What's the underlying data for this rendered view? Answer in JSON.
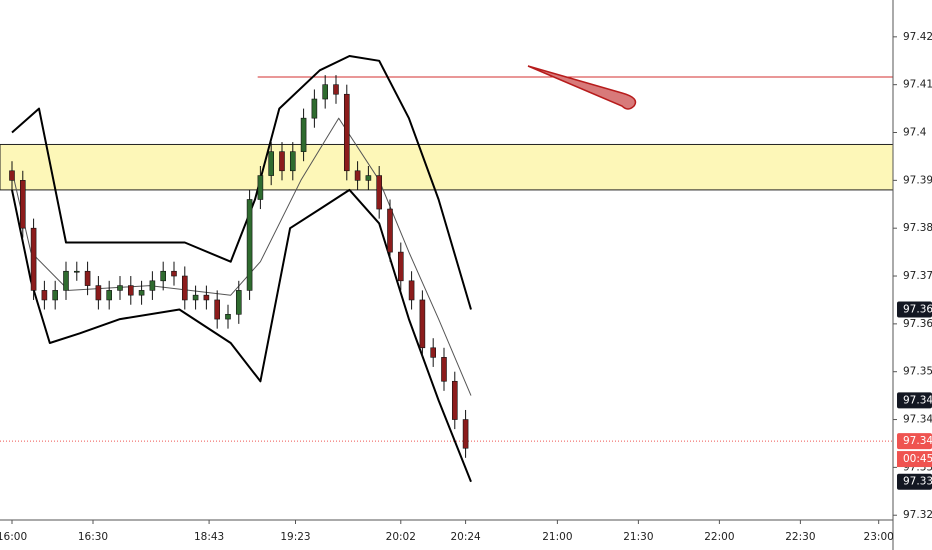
{
  "chart_data": {
    "type": "candlestick",
    "ylim": [
      97.319,
      97.4277
    ],
    "yticks": [
      97.32,
      97.33,
      97.34,
      97.35,
      97.36,
      97.37,
      97.38,
      97.39,
      97.4,
      97.41,
      97.42
    ],
    "xlim": [
      -4.44,
      326.3
    ],
    "xticks": [
      {
        "value": 0,
        "label": "16:00"
      },
      {
        "value": 30,
        "label": "16:30"
      },
      {
        "value": 73,
        "label": "18:43"
      },
      {
        "value": 105,
        "label": "19:23"
      },
      {
        "value": 144,
        "label": "20:02"
      },
      {
        "value": 168,
        "label": "20:24"
      },
      {
        "value": 202,
        "label": "21:00"
      },
      {
        "value": 232,
        "label": "21:30"
      },
      {
        "value": 262,
        "label": "22:00"
      },
      {
        "value": 292,
        "label": "22:30"
      },
      {
        "value": 321,
        "label": "23:00"
      }
    ],
    "up_color": "#2f6b2f",
    "down_color": "#8c1c1c",
    "x": [
      0,
      4,
      8,
      12,
      16,
      20,
      24,
      28,
      32,
      36,
      40,
      44,
      48,
      52,
      56,
      60,
      64,
      68,
      72,
      76,
      80,
      84,
      88,
      92,
      96,
      100,
      104,
      108,
      112,
      116,
      120,
      124,
      128,
      132,
      136,
      140,
      144,
      148,
      152,
      156,
      160,
      164,
      168
    ],
    "open": [
      97.392,
      97.39,
      97.38,
      97.367,
      97.365,
      97.367,
      97.371,
      97.371,
      97.368,
      97.365,
      97.367,
      97.368,
      97.366,
      97.367,
      97.369,
      97.371,
      97.37,
      97.365,
      97.366,
      97.365,
      97.361,
      97.362,
      97.367,
      97.386,
      97.391,
      97.396,
      97.392,
      97.396,
      97.403,
      97.407,
      97.41,
      97.408,
      97.392,
      97.39,
      97.391,
      97.384,
      97.375,
      97.369,
      97.365,
      97.355,
      97.353,
      97.348,
      97.34
    ],
    "high": [
      97.394,
      97.392,
      97.382,
      97.369,
      97.369,
      97.373,
      97.373,
      97.373,
      97.37,
      97.369,
      97.37,
      97.37,
      97.369,
      97.371,
      97.373,
      97.373,
      97.372,
      97.368,
      97.368,
      97.367,
      97.364,
      97.369,
      97.388,
      97.393,
      97.398,
      97.398,
      97.398,
      97.405,
      97.409,
      97.412,
      97.412,
      97.41,
      97.394,
      97.393,
      97.393,
      97.386,
      97.377,
      97.371,
      97.367,
      97.357,
      97.355,
      97.35,
      97.342
    ],
    "low": [
      97.388,
      97.378,
      97.365,
      97.363,
      97.363,
      97.365,
      97.369,
      97.366,
      97.363,
      97.363,
      97.365,
      97.364,
      97.364,
      97.365,
      97.367,
      97.368,
      97.363,
      97.363,
      97.363,
      97.359,
      97.359,
      97.36,
      97.365,
      97.384,
      97.389,
      97.39,
      97.39,
      97.394,
      97.401,
      97.405,
      97.406,
      97.39,
      97.388,
      97.388,
      97.382,
      97.373,
      97.367,
      97.363,
      97.353,
      97.351,
      97.346,
      97.338,
      97.332
    ],
    "close": [
      97.39,
      97.38,
      97.367,
      97.365,
      97.367,
      97.371,
      97.371,
      97.368,
      97.365,
      97.367,
      97.368,
      97.366,
      97.367,
      97.369,
      97.371,
      97.37,
      97.365,
      97.366,
      97.365,
      97.361,
      97.362,
      97.367,
      97.386,
      97.391,
      97.396,
      97.392,
      97.396,
      97.403,
      97.407,
      97.41,
      97.408,
      97.392,
      97.39,
      97.391,
      97.384,
      97.375,
      97.369,
      97.365,
      97.355,
      97.353,
      97.348,
      97.34,
      97.334
    ],
    "bands": [
      {
        "color": "#000000",
        "width": 2,
        "x": [
          0,
          10,
          20,
          40,
          64,
          81,
          90,
          99,
          114,
          125,
          136,
          147,
          158,
          170
        ],
        "values": [
          97.4,
          97.405,
          97.377,
          97.377,
          97.377,
          97.373,
          97.386,
          97.405,
          97.413,
          97.416,
          97.415,
          97.403,
          97.386,
          97.363
        ]
      },
      {
        "color": "#000000",
        "width": 2,
        "x": [
          0,
          7,
          14,
          25,
          40,
          62,
          81,
          92,
          103,
          114,
          125,
          136,
          147,
          158,
          170
        ],
        "values": [
          97.388,
          97.369,
          97.356,
          97.358,
          97.361,
          97.363,
          97.356,
          97.348,
          97.38,
          97.384,
          97.388,
          97.381,
          97.361,
          97.344,
          97.327
        ]
      },
      {
        "color": "#555555",
        "width": 1,
        "x": [
          0,
          7,
          21,
          51,
          81,
          92,
          107,
          121,
          136,
          147,
          158,
          170
        ],
        "values": [
          97.392,
          97.375,
          97.367,
          97.368,
          97.366,
          97.373,
          97.39,
          97.403,
          97.39,
          97.375,
          97.361,
          97.345
        ]
      }
    ],
    "zone": [
      97.388,
      97.3975
    ],
    "level_line": {
      "value": 97.4116,
      "x": 91
    },
    "current_price": 97.3355,
    "price_labels": [
      {
        "value": 97.363,
        "label": "97.36",
        "color": "#131722"
      },
      {
        "value": 97.344,
        "label": "97.34",
        "color": "#131722"
      },
      {
        "value": 97.3355,
        "label": "97.34",
        "color": "#ef5350"
      },
      {
        "value": 97.327,
        "label": "97.33",
        "color": "#131722"
      }
    ],
    "countdown": "00:45"
  }
}
